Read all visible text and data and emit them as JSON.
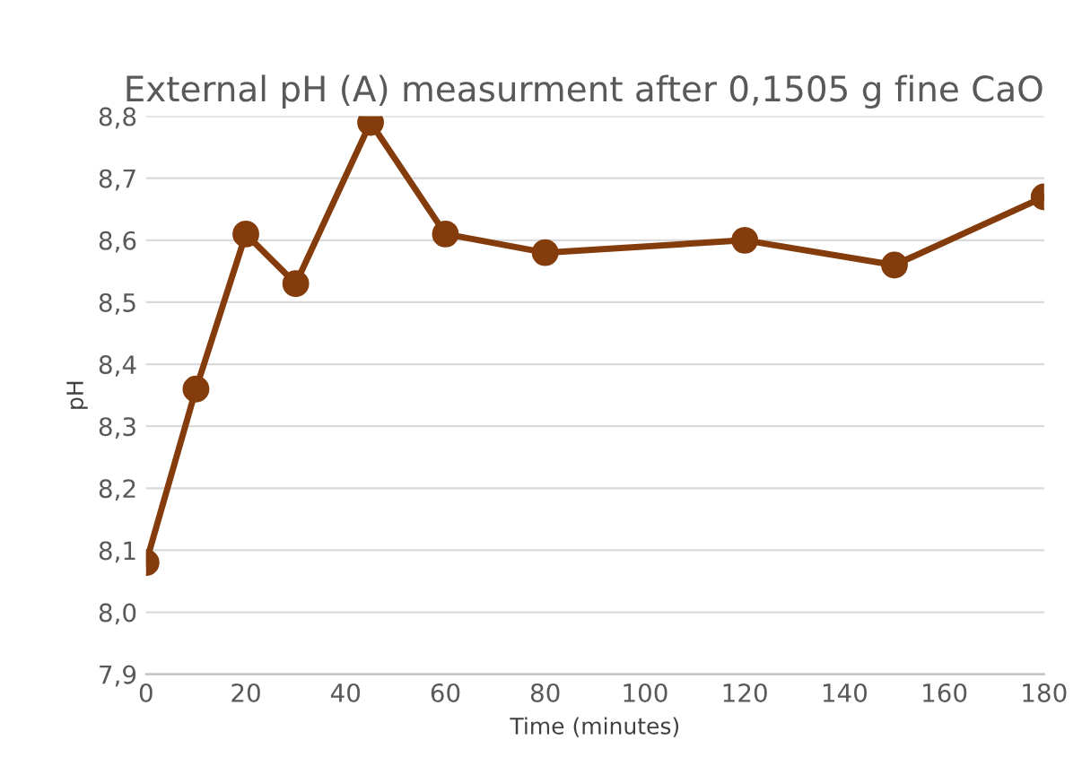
{
  "chart_data": {
    "type": "line",
    "title": "External pH (A) measurment after 0,1505 g fine CaO",
    "xlabel": "Time (minutes)",
    "ylabel": "pH",
    "x": [
      0,
      10,
      20,
      30,
      45,
      60,
      80,
      120,
      150,
      180
    ],
    "series": [
      {
        "color": "#843c0c",
        "values": [
          8.08,
          8.36,
          8.61,
          8.53,
          8.79,
          8.61,
          8.58,
          8.6,
          8.56,
          8.67
        ]
      }
    ],
    "xlim": [
      0,
      180
    ],
    "xticks": [
      0,
      20,
      40,
      60,
      80,
      100,
      120,
      140,
      160,
      180
    ],
    "ylim": [
      7.9,
      8.8
    ],
    "yticks": [
      {
        "value": 7.9,
        "label": "7,9"
      },
      {
        "value": 8.0,
        "label": "8,0"
      },
      {
        "value": 8.1,
        "label": "8,1"
      },
      {
        "value": 8.2,
        "label": "8,2"
      },
      {
        "value": 8.3,
        "label": "8,3"
      },
      {
        "value": 8.4,
        "label": "8,4"
      },
      {
        "value": 8.5,
        "label": "8,5"
      },
      {
        "value": 8.6,
        "label": "8,6"
      },
      {
        "value": 8.7,
        "label": "8,7"
      },
      {
        "value": 8.8,
        "label": "8,8"
      }
    ],
    "grid": "y",
    "marker": "circle",
    "line_style": "solid",
    "legend": false
  }
}
